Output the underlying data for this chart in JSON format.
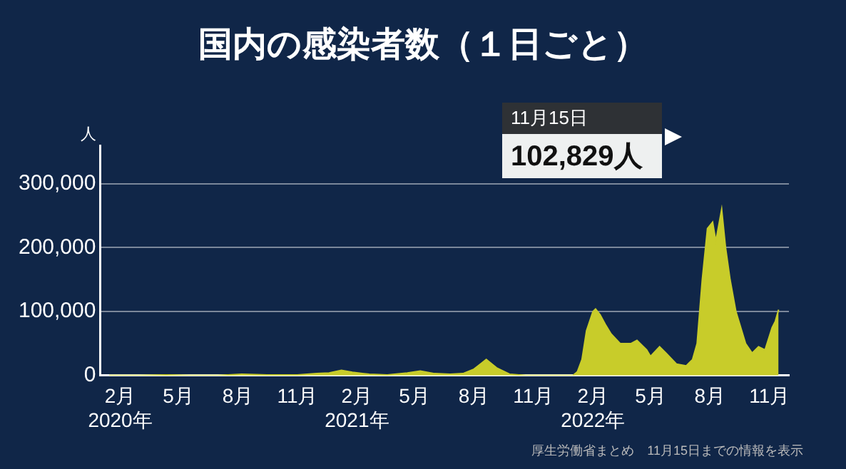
{
  "chart_data": {
    "type": "area",
    "title": "国内の感染者数（１日ごと）",
    "ylabel": "人",
    "x": [
      "2020-01-15",
      "2020-03-01",
      "2020-04-12",
      "2020-05-20",
      "2020-07-01",
      "2020-08-07",
      "2020-09-15",
      "2020-11-01",
      "2020-12-01",
      "2020-12-20",
      "2021-01-08",
      "2021-01-25",
      "2021-02-20",
      "2021-03-20",
      "2021-04-20",
      "2021-05-10",
      "2021-06-01",
      "2021-06-25",
      "2021-07-15",
      "2021-08-01",
      "2021-08-20",
      "2021-09-05",
      "2021-09-25",
      "2021-10-20",
      "2021-12-01",
      "2022-01-01",
      "2022-01-08",
      "2022-01-15",
      "2022-01-22",
      "2022-02-01",
      "2022-02-05",
      "2022-02-12",
      "2022-02-20",
      "2022-03-01",
      "2022-03-15",
      "2022-04-01",
      "2022-04-10",
      "2022-04-25",
      "2022-05-01",
      "2022-05-15",
      "2022-05-25",
      "2022-06-10",
      "2022-06-25",
      "2022-07-05",
      "2022-07-12",
      "2022-07-20",
      "2022-07-28",
      "2022-08-05",
      "2022-08-10",
      "2022-08-19",
      "2022-08-25",
      "2022-09-01",
      "2022-09-10",
      "2022-09-25",
      "2022-10-05",
      "2022-10-15",
      "2022-10-25",
      "2022-11-05",
      "2022-11-10",
      "2022-11-15"
    ],
    "values": [
      0,
      0,
      1000,
      0,
      0,
      2000,
      1000,
      1000,
      3000,
      4000,
      8000,
      5000,
      2000,
      1000,
      4000,
      7000,
      3000,
      2000,
      3000,
      10000,
      25000,
      12000,
      2000,
      0,
      0,
      0,
      6000,
      25000,
      70000,
      100000,
      104000,
      95000,
      80000,
      65000,
      50000,
      50000,
      55000,
      40000,
      30000,
      45000,
      35000,
      18000,
      15000,
      25000,
      50000,
      150000,
      230000,
      240000,
      210000,
      260000,
      200000,
      150000,
      100000,
      50000,
      35000,
      45000,
      40000,
      75000,
      85000,
      102829
    ],
    "color": "#c8cc2a",
    "xlim": [
      "2020-01-01",
      "2022-12-01"
    ],
    "xticks": [
      {
        "value": "2020-02-01",
        "label": "2月\n2020年"
      },
      {
        "value": "2020-05-01",
        "label": "5月"
      },
      {
        "value": "2020-08-01",
        "label": "8月"
      },
      {
        "value": "2020-11-01",
        "label": "11月"
      },
      {
        "value": "2021-02-01",
        "label": "2月\n2021年"
      },
      {
        "value": "2021-05-01",
        "label": "5月"
      },
      {
        "value": "2021-08-01",
        "label": "8月"
      },
      {
        "value": "2021-11-01",
        "label": "11月"
      },
      {
        "value": "2022-02-01",
        "label": "2月\n2022年"
      },
      {
        "value": "2022-05-01",
        "label": "5月"
      },
      {
        "value": "2022-08-01",
        "label": "8月"
      },
      {
        "value": "2022-11-01",
        "label": "11月"
      }
    ],
    "ylim": [
      0,
      360000
    ],
    "yticks": [
      {
        "value": 0,
        "label": "0"
      },
      {
        "value": 100000,
        "label": "100,000"
      },
      {
        "value": 200000,
        "label": "200,000"
      },
      {
        "value": 300000,
        "label": "300,000"
      }
    ],
    "grid": "y",
    "annotations": [
      "11月15日",
      "102,829人",
      "厚生労働省まとめ　11月15日までの情報を表示"
    ]
  }
}
